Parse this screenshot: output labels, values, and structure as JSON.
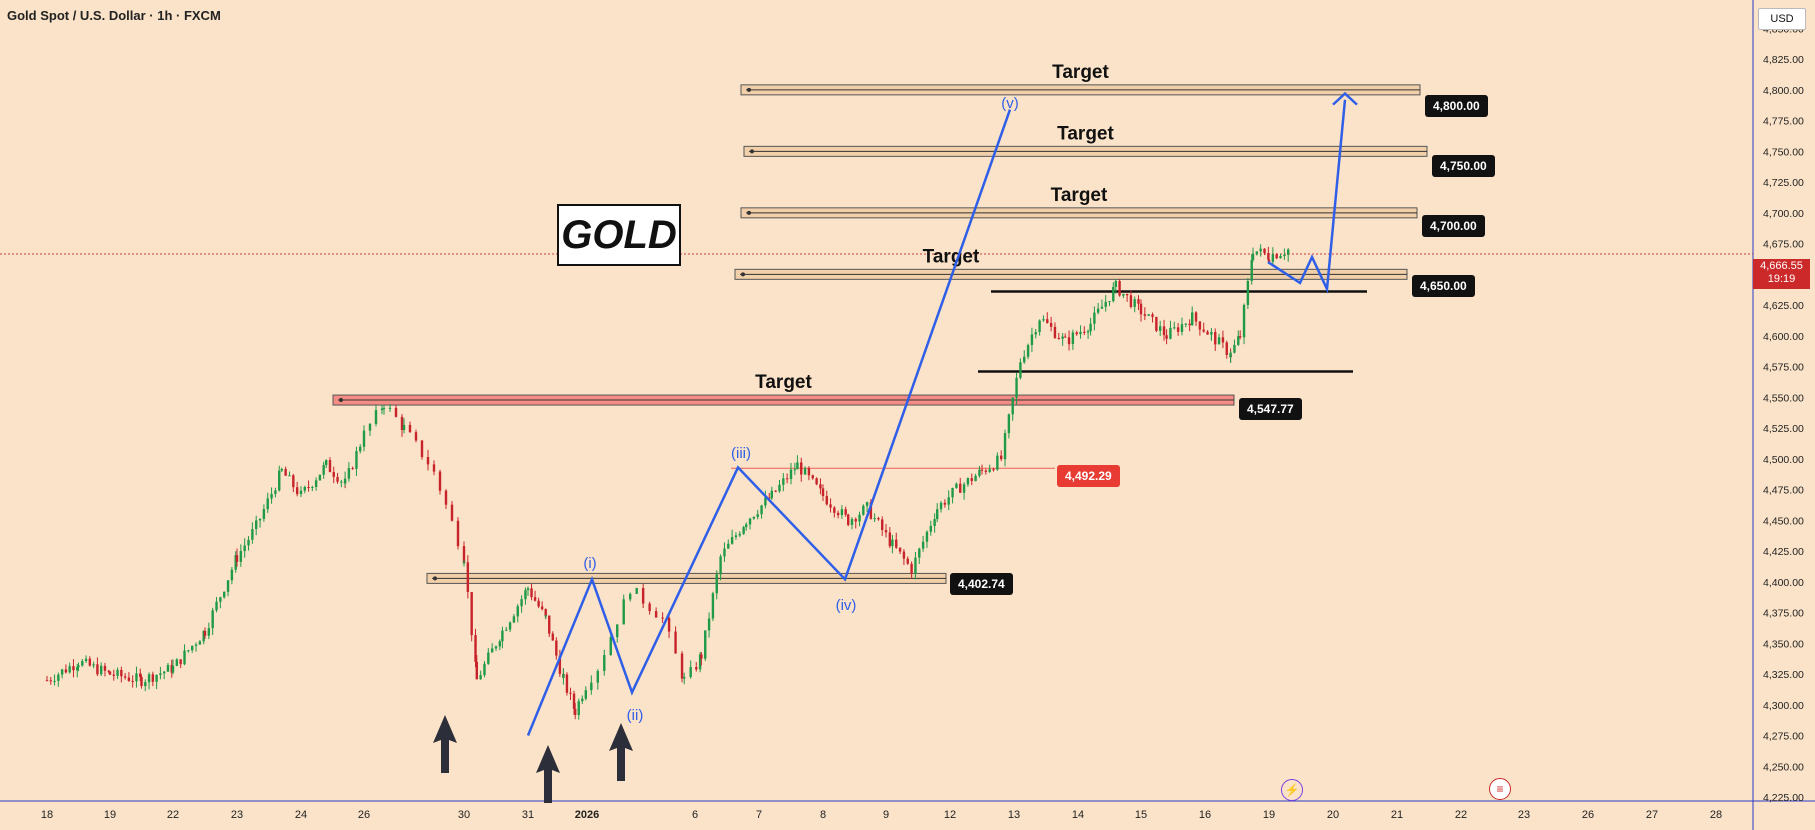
{
  "header": {
    "title": "Gold Spot / U.S. Dollar · 1h · FXCM"
  },
  "currency_label": "USD",
  "gold_label": "GOLD",
  "current_price": {
    "value": "4,666.55",
    "countdown": "19:19"
  },
  "colors": {
    "background": "#fae3c8",
    "zone_fill": "#f1cfa8",
    "red_zone": "#f48c86",
    "wave_line": "#2f5fe8",
    "bull_candle": "#1f9a47",
    "bear_candle": "#c8232a",
    "axis_line": "#2b39c9"
  },
  "event_icons": {
    "bolt": "bolt-icon",
    "flag": "us-flag-icon"
  },
  "chart_data": {
    "type": "candlestick",
    "title": "Gold Spot / U.S. Dollar · 1h · FXCM",
    "ylim": [
      4225,
      4862.5
    ],
    "y_ticks": [
      "4,225.00",
      "4,250.00",
      "4,275.00",
      "4,300.00",
      "4,325.00",
      "4,350.00",
      "4,375.00",
      "4,400.00",
      "4,425.00",
      "4,450.00",
      "4,475.00",
      "4,500.00",
      "4,525.00",
      "4,550.00",
      "4,575.00",
      "4,600.00",
      "4,625.00",
      "4,650.00",
      "4,675.00",
      "4,700.00",
      "4,725.00",
      "4,750.00",
      "4,775.00",
      "4,800.00",
      "4,825.00",
      "4,850.00"
    ],
    "x_ticks": [
      "18",
      "19",
      "22",
      "23",
      "24",
      "26",
      "30",
      "31",
      "2026",
      "6",
      "7",
      "8",
      "9",
      "12",
      "13",
      "14",
      "15",
      "16",
      "19",
      "20",
      "21",
      "22",
      "23",
      "26",
      "27",
      "28"
    ],
    "price_path": [
      [
        0,
        4320
      ],
      [
        0.5,
        4335
      ],
      [
        1,
        4325
      ],
      [
        1.5,
        4320
      ],
      [
        2,
        4330
      ],
      [
        2.5,
        4360
      ],
      [
        3,
        4420
      ],
      [
        3.3,
        4445
      ],
      [
        3.7,
        4490
      ],
      [
        4,
        4470
      ],
      [
        4.4,
        4495
      ],
      [
        4.7,
        4480
      ],
      [
        5,
        4520
      ],
      [
        5.2,
        4545
      ],
      [
        5.4,
        4525
      ],
      [
        5.7,
        4490
      ],
      [
        6,
        4420
      ],
      [
        6.2,
        4320
      ],
      [
        6.6,
        4360
      ],
      [
        7,
        4395
      ],
      [
        7.3,
        4370
      ],
      [
        7.6,
        4320
      ],
      [
        7.8,
        4295
      ],
      [
        8.1,
        4330
      ],
      [
        8.4,
        4395
      ],
      [
        8.7,
        4370
      ],
      [
        8.9,
        4320
      ],
      [
        9.1,
        4340
      ],
      [
        9.4,
        4420
      ],
      [
        9.8,
        4450
      ],
      [
        10.2,
        4470
      ],
      [
        10.6,
        4495
      ],
      [
        11,
        4470
      ],
      [
        11.4,
        4450
      ],
      [
        11.7,
        4460
      ],
      [
        12.1,
        4430
      ],
      [
        12.4,
        4410
      ],
      [
        12.8,
        4460
      ],
      [
        13.1,
        4475
      ],
      [
        13.5,
        4490
      ],
      [
        13.8,
        4500
      ],
      [
        14.1,
        4580
      ],
      [
        14.4,
        4615
      ],
      [
        14.8,
        4595
      ],
      [
        15.2,
        4610
      ],
      [
        15.6,
        4640
      ],
      [
        16,
        4620
      ],
      [
        16.4,
        4600
      ],
      [
        16.8,
        4615
      ],
      [
        17.1,
        4600
      ],
      [
        17.4,
        4585
      ],
      [
        17.55,
        4600
      ],
      [
        17.75,
        4670
      ],
      [
        18,
        4665
      ],
      [
        18.3,
        4670
      ]
    ],
    "levels": [
      {
        "label": "Target",
        "value": "4,800.00"
      },
      {
        "label": "Target",
        "value": "4,750.00"
      },
      {
        "label": "Target",
        "value": "4,700.00"
      },
      {
        "label": "Target",
        "value": "4,650.00"
      },
      {
        "label": "Target",
        "value": "4,547.77"
      },
      {
        "label": "",
        "value": "4,492.29"
      },
      {
        "label": "",
        "value": "4,402.74"
      }
    ],
    "wave_labels": [
      "(i)",
      "(ii)",
      "(iii)",
      "(iv)",
      "(v)"
    ]
  }
}
